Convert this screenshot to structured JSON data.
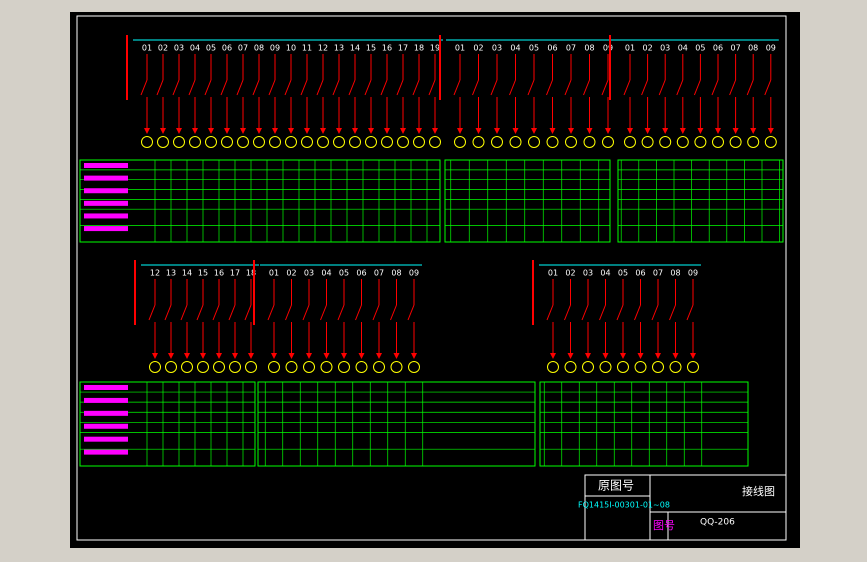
{
  "panels": [
    {
      "columns": [
        "01",
        "02",
        "03",
        "04",
        "05",
        "06",
        "07",
        "08",
        "09",
        "10",
        "11",
        "12",
        "13",
        "14",
        "15",
        "16",
        "17",
        "18",
        "19"
      ]
    },
    {
      "columns": [
        "01",
        "02",
        "03",
        "04",
        "05",
        "06",
        "07",
        "08",
        "09"
      ]
    },
    {
      "columns": [
        "01",
        "02",
        "03",
        "04",
        "05",
        "06",
        "07",
        "08",
        "09"
      ]
    },
    {
      "columns": [
        "12",
        "13",
        "14",
        "15",
        "16",
        "17",
        "18"
      ]
    },
    {
      "columns": [
        "01",
        "02",
        "03",
        "04",
        "05",
        "06",
        "07",
        "08",
        "09"
      ]
    },
    {
      "columns": [
        "01",
        "02",
        "03",
        "04",
        "05",
        "06",
        "07",
        "08",
        "09"
      ]
    }
  ],
  "title_block": {
    "original_label": "原图号",
    "original_number": "FQ1415I-00301-01~08",
    "drawing_name": "接线图",
    "number_label": "图号",
    "drawing_number": "QQ-206"
  }
}
